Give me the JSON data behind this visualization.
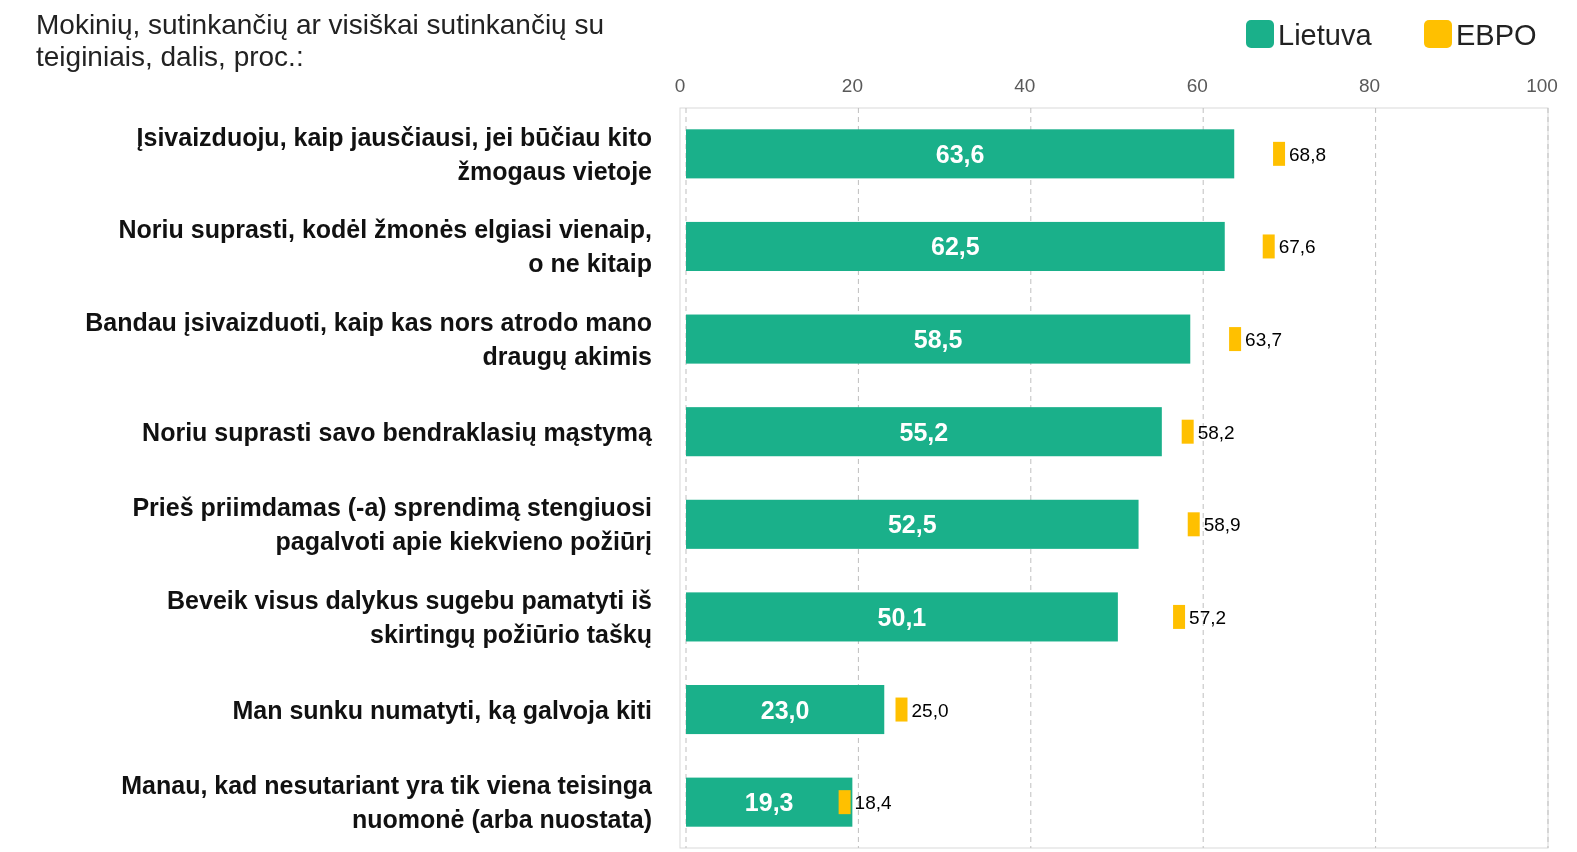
{
  "chart_data": {
    "type": "bar",
    "orientation": "horizontal",
    "title": "Mokinių, sutinkančių ar visiškai sutinkančių su teiginiais, dalis, proc.:",
    "categories": [
      "Įsivaizduoju, kaip jausčiausi, jei būčiau kito žmogaus vietoje",
      "Noriu suprasti, kodėl žmonės elgiasi vienaip, o ne kitaip",
      "Bandau įsivaizduoti, kaip kas nors atrodo mano draugų akimis",
      "Noriu suprasti savo bendraklasių mąstymą",
      "Prieš priimdamas (-a) sprendimą stengiuosi pagalvoti apie kiekvieno požiūrį",
      "Beveik visus dalykus sugebu pamatyti iš skirtingų požiūrio taškų",
      "Man sunku numatyti, ką galvoja kiti",
      "Manau, kad nesutariant yra tik viena teisinga nuomonė (arba nuostata)"
    ],
    "series": [
      {
        "name": "Lietuva",
        "color": "#1ab08a",
        "values": [
          63.6,
          62.5,
          58.5,
          55.2,
          52.5,
          50.1,
          23.0,
          19.3
        ],
        "value_labels": [
          "63,6",
          "62,5",
          "58,5",
          "55,2",
          "52,5",
          "50,1",
          "23,0",
          "19,3"
        ]
      },
      {
        "name": "EBPO",
        "type": "scatter",
        "color": "#ffc000",
        "marker": "square",
        "values": [
          68.8,
          67.6,
          63.7,
          58.2,
          58.9,
          57.2,
          25.0,
          18.4
        ],
        "value_labels": [
          "68,8",
          "67,6",
          "63,7",
          "58,2",
          "58,9",
          "57,2",
          "25,0",
          "18,4"
        ]
      }
    ],
    "xlim": [
      0,
      100
    ],
    "xticks": [
      0,
      20,
      40,
      60,
      80,
      100
    ],
    "grid": "x",
    "legend": "top right"
  }
}
